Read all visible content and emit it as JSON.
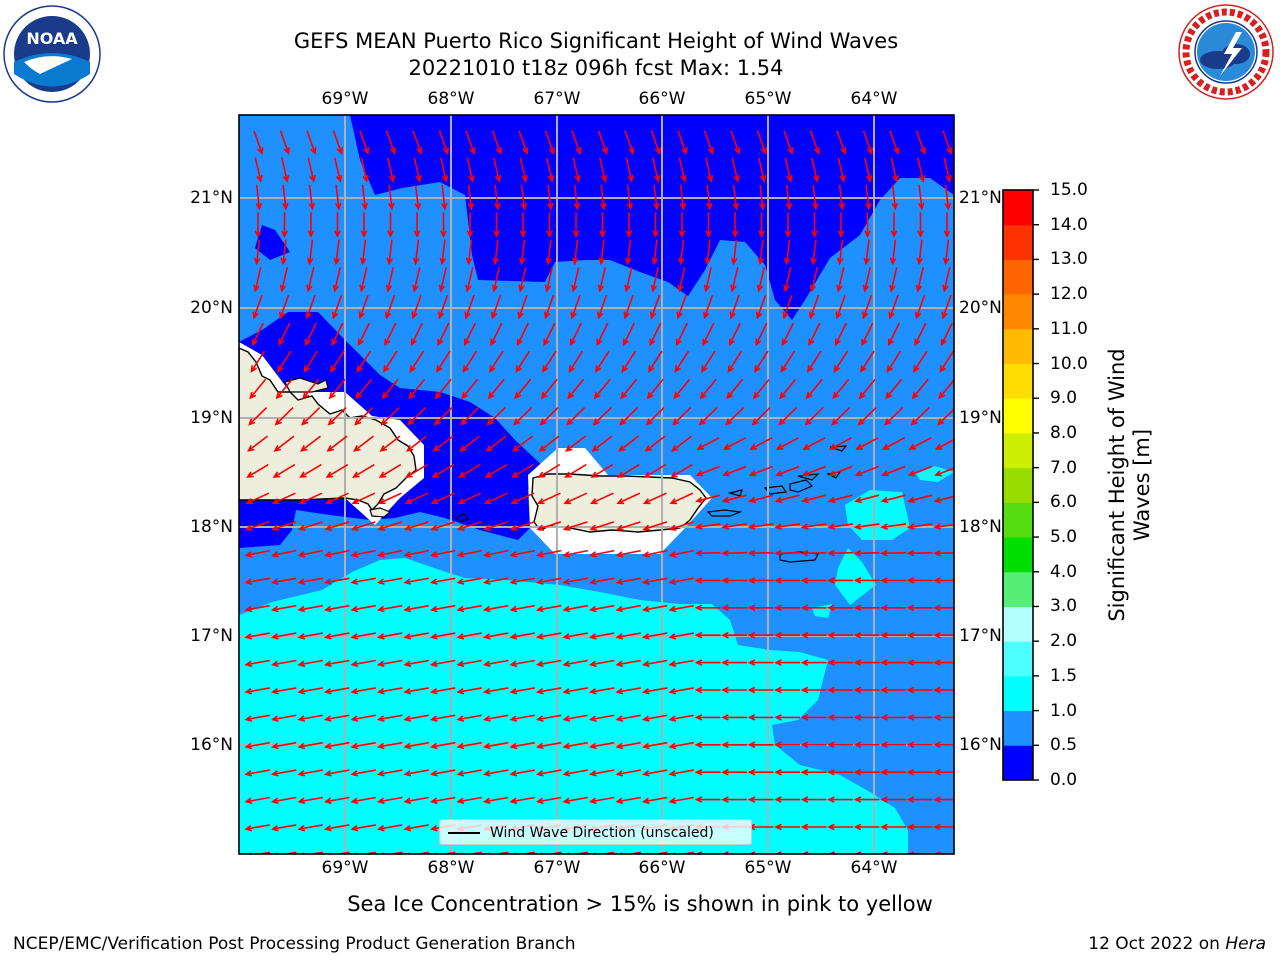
{
  "header": {
    "title_line1": "GEFS MEAN Puerto Rico Significant Height of Wind Waves",
    "title_line2": "20221010 t18z 096h fcst   Max: 1.54"
  },
  "logos": {
    "left": {
      "name": "noaa-logo",
      "text": "NOAA",
      "ring_text": "NATIONAL OCEANIC AND ATMOSPHERIC ADMINISTRATION · U.S. DEPARTMENT OF COMMERCE"
    },
    "right": {
      "name": "nws-logo",
      "ring_text": "NATIONAL WEATHER SERVICE"
    }
  },
  "map": {
    "lon_labels": [
      "69°W",
      "68°W",
      "67°W",
      "66°W",
      "65°W",
      "64°W"
    ],
    "lat_labels": [
      "21°N",
      "20°N",
      "19°N",
      "18°N",
      "17°N",
      "16°N"
    ],
    "legend_label": "Wind Wave Direction (unscaled)",
    "colors": {
      "ocean_0_05": "#0000ff",
      "ocean_05_10": "#1e90ff",
      "ocean_10_15": "#00ffff",
      "land": "#eeeedd",
      "grid": "#b0b0b0",
      "arrows": "#ff0000"
    }
  },
  "colorbar": {
    "title": "Significant Height of Wind Waves [m]",
    "levels": [
      "0.0",
      "0.5",
      "1.0",
      "1.5",
      "2.0",
      "3.0",
      "4.0",
      "5.0",
      "6.0",
      "7.0",
      "8.0",
      "9.0",
      "10.0",
      "11.0",
      "12.0",
      "13.0",
      "14.0",
      "15.0"
    ],
    "colors": [
      "#0000ff",
      "#1e90ff",
      "#00ffff",
      "#4dffff",
      "#b3ffff",
      "#55ee77",
      "#00dd00",
      "#55dd11",
      "#99dd00",
      "#ccee00",
      "#ffff00",
      "#ffdd00",
      "#ffbb00",
      "#ff8800",
      "#ff6600",
      "#ff3300",
      "#ff0000"
    ]
  },
  "caption": "Sea Ice Concentration > 15% is shown in pink to yellow",
  "footer": {
    "left": "NCEP/EMC/Verification Post Processing Product Generation Branch",
    "right_prefix": "12 Oct 2022 on ",
    "right_host": "Hera"
  }
}
